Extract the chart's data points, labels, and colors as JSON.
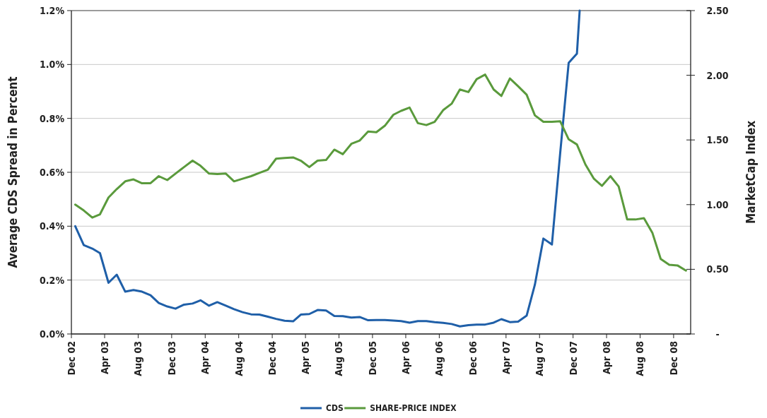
{
  "chart_data": {
    "type": "line",
    "ylabel": "Average CDS Spread in Percent",
    "y2label": "MarketCap Index",
    "x": [
      "2002-12-15",
      "2003-01-15",
      "2003-02-15",
      "2003-03-15",
      "2003-04-15",
      "2003-05-15",
      "2003-06-15",
      "2003-07-15",
      "2003-08-15",
      "2003-09-15",
      "2003-10-15",
      "2003-11-15",
      "2003-12-15",
      "2004-01-15",
      "2004-02-15",
      "2004-03-15",
      "2004-04-15",
      "2004-05-15",
      "2004-06-15",
      "2004-07-15",
      "2004-08-15",
      "2004-09-15",
      "2004-10-15",
      "2004-11-15",
      "2004-12-15",
      "2005-01-15",
      "2005-02-15",
      "2005-03-15",
      "2005-04-15",
      "2005-05-15",
      "2005-06-15",
      "2005-07-15",
      "2005-08-15",
      "2005-09-15",
      "2005-10-15",
      "2005-11-15",
      "2005-12-15",
      "2006-01-15",
      "2006-02-15",
      "2006-03-15",
      "2006-04-15",
      "2006-05-15",
      "2006-06-15",
      "2006-07-15",
      "2006-08-15",
      "2006-09-15",
      "2006-10-15",
      "2006-11-15",
      "2006-12-15",
      "2007-01-15",
      "2007-02-15",
      "2007-03-15",
      "2007-04-15",
      "2007-05-15",
      "2007-06-15",
      "2007-07-15",
      "2007-08-15",
      "2007-09-15",
      "2007-10-15",
      "2007-11-15",
      "2007-12-15",
      "2008-01-15",
      "2008-02-15",
      "2008-03-15",
      "2008-04-15",
      "2008-05-15",
      "2008-06-15",
      "2008-07-15",
      "2008-08-15",
      "2008-09-15",
      "2008-10-15",
      "2008-11-15",
      "2008-12-15",
      "2009-01-15"
    ],
    "series": [
      {
        "name": "CDS",
        "color": "#1f5fa8",
        "x": [
          "2002-12-15",
          "2003-01-15",
          "2003-02-15",
          "2003-03-15",
          "2003-04-15",
          "2003-05-15",
          "2003-06-15",
          "2003-07-15",
          "2003-08-15",
          "2003-09-15",
          "2003-10-15",
          "2003-11-15",
          "2003-12-15",
          "2004-01-15",
          "2004-02-15",
          "2004-03-15",
          "2004-04-15",
          "2004-05-15",
          "2004-06-15",
          "2004-07-15",
          "2004-08-15",
          "2004-09-15",
          "2004-10-15",
          "2004-11-15",
          "2004-12-15",
          "2005-01-15",
          "2005-02-15",
          "2005-03-15",
          "2005-04-15",
          "2005-05-15",
          "2005-06-15",
          "2005-07-15",
          "2005-08-15",
          "2005-09-15",
          "2005-10-15",
          "2005-11-15",
          "2005-12-15",
          "2006-01-15",
          "2006-02-15",
          "2006-03-15",
          "2006-04-15",
          "2006-05-15",
          "2006-06-15",
          "2006-07-15",
          "2006-08-15",
          "2006-09-15",
          "2006-10-15",
          "2006-11-15",
          "2006-12-15",
          "2007-01-15",
          "2007-02-15",
          "2007-03-15",
          "2007-04-15",
          "2007-05-15",
          "2007-06-15",
          "2007-07-15",
          "2007-08-15",
          "2007-09-15",
          "2007-10-15",
          "2007-11-15",
          "2007-12-15",
          "2007-12-25"
        ],
        "values": [
          0.4,
          0.33,
          0.317,
          0.3,
          0.19,
          0.22,
          0.157,
          0.163,
          0.157,
          0.144,
          0.115,
          0.102,
          0.094,
          0.109,
          0.113,
          0.125,
          0.105,
          0.118,
          0.105,
          0.092,
          0.081,
          0.073,
          0.072,
          0.064,
          0.056,
          0.049,
          0.047,
          0.072,
          0.074,
          0.089,
          0.087,
          0.067,
          0.066,
          0.061,
          0.063,
          0.051,
          0.052,
          0.052,
          0.05,
          0.048,
          0.042,
          0.048,
          0.048,
          0.044,
          0.041,
          0.037,
          0.028,
          0.033,
          0.035,
          0.035,
          0.042,
          0.055,
          0.044,
          0.046,
          0.068,
          0.183,
          0.354,
          0.332,
          0.67,
          1.006,
          1.04,
          1.2
        ]
      },
      {
        "name": "SHARE-PRICE INDEX",
        "color": "#5a9a3c",
        "axis": "y2",
        "values": [
          1.0,
          0.955,
          0.9,
          0.925,
          1.055,
          1.12,
          1.18,
          1.195,
          1.165,
          1.166,
          1.22,
          1.19,
          1.24,
          1.29,
          1.34,
          1.3,
          1.24,
          1.237,
          1.24,
          1.18,
          1.2,
          1.22,
          1.245,
          1.27,
          1.355,
          1.36,
          1.365,
          1.34,
          1.29,
          1.34,
          1.345,
          1.425,
          1.39,
          1.47,
          1.495,
          1.565,
          1.56,
          1.61,
          1.695,
          1.725,
          1.75,
          1.63,
          1.615,
          1.64,
          1.73,
          1.78,
          1.89,
          1.87,
          1.97,
          2.005,
          1.89,
          1.84,
          1.975,
          1.915,
          1.85,
          1.69,
          1.64,
          1.64,
          1.645,
          1.505,
          1.465,
          1.31,
          1.2,
          1.145,
          1.22,
          1.14,
          0.885,
          0.885,
          0.895,
          0.78,
          0.58,
          0.535,
          0.53,
          0.49
        ]
      }
    ],
    "xlim": [
      "2002-12-01",
      "2009-02-01"
    ],
    "xticks": [
      {
        "value": "2002-12-01",
        "label": "Dec 02"
      },
      {
        "value": "2003-04-01",
        "label": "Apr 03"
      },
      {
        "value": "2003-08-01",
        "label": "Aug 03"
      },
      {
        "value": "2003-12-01",
        "label": "Dec 03"
      },
      {
        "value": "2004-04-01",
        "label": "Apr 04"
      },
      {
        "value": "2004-08-01",
        "label": "Aug 04"
      },
      {
        "value": "2004-12-01",
        "label": "Dec 04"
      },
      {
        "value": "2005-04-01",
        "label": "Apr 05"
      },
      {
        "value": "2005-08-01",
        "label": "Aug 05"
      },
      {
        "value": "2005-12-01",
        "label": "Dec 05"
      },
      {
        "value": "2006-04-01",
        "label": "Apr 06"
      },
      {
        "value": "2006-08-01",
        "label": "Aug 06"
      },
      {
        "value": "2006-12-01",
        "label": "Dec 06"
      },
      {
        "value": "2007-04-01",
        "label": "Apr 07"
      },
      {
        "value": "2007-08-01",
        "label": "Aug 07"
      },
      {
        "value": "2007-12-01",
        "label": "Dec 07"
      },
      {
        "value": "2008-04-01",
        "label": "Apr 08"
      },
      {
        "value": "2008-08-01",
        "label": "Aug 08"
      },
      {
        "value": "2008-12-01",
        "label": "Dec 08"
      }
    ],
    "ylim": [
      0,
      1.2
    ],
    "yticks": [
      {
        "value": 0,
        "label": "0.0%"
      },
      {
        "value": 0.2,
        "label": "0.2%"
      },
      {
        "value": 0.4,
        "label": "0.4%"
      },
      {
        "value": 0.6,
        "label": "0.6%"
      },
      {
        "value": 0.8,
        "label": "0.8%"
      },
      {
        "value": 1.0,
        "label": "1.0%"
      },
      {
        "value": 1.2,
        "label": "1.2%"
      }
    ],
    "y2lim": [
      0,
      2.5
    ],
    "y2ticks": [
      {
        "value": 0,
        "label": "-"
      },
      {
        "value": 0.5,
        "label": "0.50"
      },
      {
        "value": 1.0,
        "label": "1.00"
      },
      {
        "value": 1.5,
        "label": "1.50"
      },
      {
        "value": 2.0,
        "label": "2.00"
      },
      {
        "value": 2.5,
        "label": "2.50"
      }
    ],
    "grid": "y",
    "legend": "bottom",
    "marker": "none"
  }
}
